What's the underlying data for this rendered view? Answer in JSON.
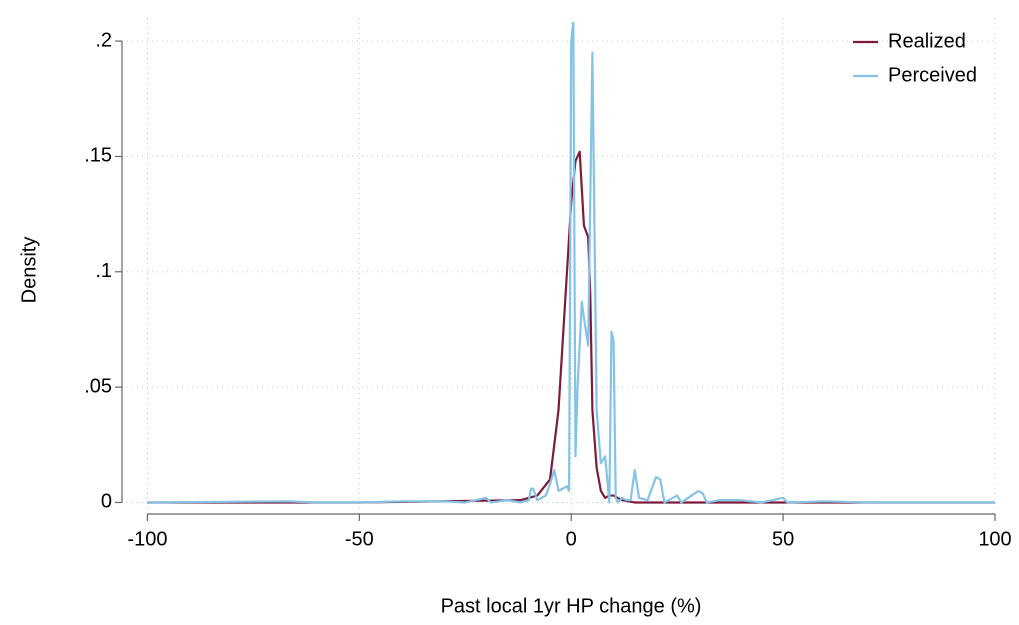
{
  "chart_data": {
    "type": "line",
    "xlabel": "Past local 1yr HP change (%)",
    "ylabel": "Density",
    "xlim": [
      -106,
      100
    ],
    "xticks": [
      -100,
      -50,
      0,
      50,
      100
    ],
    "ylim": [
      -0.005,
      0.21
    ],
    "yticks": [
      0,
      {
        "value": 0.05,
        "label": ".05"
      },
      {
        "value": 0.1,
        "label": ".1"
      },
      {
        "value": 0.15,
        "label": ".15"
      },
      {
        "value": 0.2,
        "label": ".2"
      }
    ],
    "grid": true,
    "legend": "top-right",
    "series": [
      {
        "name": "Realized",
        "color": "#7b1c3e",
        "x": [
          -100,
          -50,
          -12,
          -8,
          -5,
          -3,
          -1.5,
          0,
          1,
          2,
          3,
          4,
          4.5,
          5,
          6,
          7,
          8,
          9,
          10,
          12,
          15,
          50,
          100
        ],
        "values": [
          0,
          0,
          0.001,
          0.003,
          0.01,
          0.04,
          0.085,
          0.13,
          0.148,
          0.152,
          0.12,
          0.115,
          0.09,
          0.04,
          0.015,
          0.005,
          0.002,
          0.003,
          0.003,
          0.001,
          0,
          0,
          0
        ]
      },
      {
        "name": "Perceived",
        "color": "#85c3e6",
        "x": [
          -100,
          -67,
          -60,
          -50,
          -40,
          -30,
          -25,
          -20,
          -19,
          -15,
          -12,
          -10,
          -9.5,
          -9,
          -8,
          -6,
          -5,
          -4,
          -3,
          -2,
          -1,
          -0.5,
          0,
          0.5,
          1,
          1.5,
          2.5,
          3,
          4,
          5,
          6,
          7,
          8,
          9,
          9.5,
          10,
          10.5,
          11,
          12,
          13,
          14,
          15,
          16,
          18,
          20,
          21,
          22,
          25,
          26,
          30,
          31,
          32,
          35,
          40,
          45,
          50,
          51,
          60,
          70,
          100
        ],
        "values": [
          0,
          0.0005,
          0,
          0,
          0.0005,
          0.0005,
          0,
          0.002,
          0,
          0.001,
          0,
          0.001,
          0.006,
          0.006,
          0.001,
          0.003,
          0.008,
          0.014,
          0.005,
          0.006,
          0.007,
          0.005,
          0.2,
          0.208,
          0.02,
          0.05,
          0.087,
          0.08,
          0.068,
          0.195,
          0.04,
          0.017,
          0.02,
          0,
          0.074,
          0.07,
          0.002,
          0,
          0.002,
          0.001,
          0.001,
          0.014,
          0.002,
          0.001,
          0.011,
          0.01,
          0,
          0.003,
          0,
          0.005,
          0.004,
          0,
          0.001,
          0.001,
          0,
          0.002,
          0,
          0.0005,
          0,
          0
        ]
      }
    ]
  }
}
